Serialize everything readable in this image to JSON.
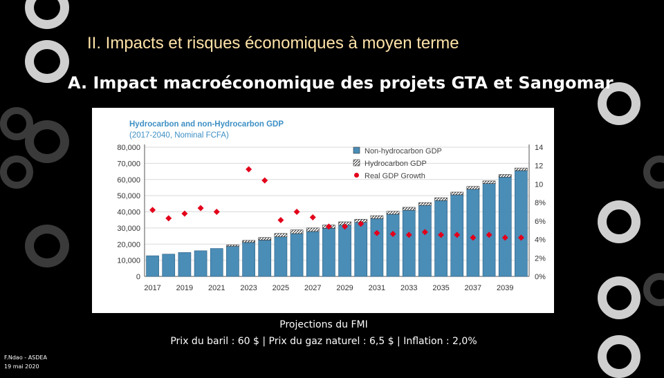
{
  "slide": {
    "title": "II. Impacts et risques  économiques à moyen terme",
    "subtitle": "A.  Impact macroéconomique des projets GTA et Sangomar",
    "caption_line1": "Projections du FMI",
    "caption_line2": "Prix du baril : 60 $ | Prix du gaz naturel : 6,5 $ | Inflation : 2,0%",
    "footer_author": "F.Ndao - ASDEA",
    "footer_date": "19 mai 2020"
  },
  "colors": {
    "background": "#000000",
    "title": "#ffe3a8",
    "bar_non_hydrocarbon": "#4a8db7",
    "bar_hydrocarbon": "#ffffff",
    "growth_marker": "#e3001b",
    "chart_title": "#3d8fc4"
  },
  "chart_data": {
    "type": "bar",
    "title": "Hydrocarbon and non-Hydrocarbon GDP",
    "subtitle": "(2017-2040, Nominal FCFA)",
    "categories": [
      "2017",
      "2018",
      "2019",
      "2020",
      "2021",
      "2022",
      "2023",
      "2024",
      "2025",
      "2026",
      "2027",
      "2028",
      "2029",
      "2030",
      "2031",
      "2032",
      "2033",
      "2034",
      "2035",
      "2036",
      "2037",
      "2038",
      "2039",
      "2040"
    ],
    "x_tick_labels": [
      "2017",
      "2019",
      "2021",
      "2023",
      "2025",
      "2027",
      "2029",
      "2031",
      "2033",
      "2035",
      "2037",
      "2039"
    ],
    "series": [
      {
        "name": "Non-hydrocarbon GDP",
        "kind": "bar",
        "axis": "left",
        "values": [
          12800,
          13800,
          14800,
          15900,
          17300,
          18600,
          21000,
          22500,
          24500,
          26500,
          27800,
          29800,
          31800,
          33500,
          35800,
          38500,
          41000,
          44000,
          47000,
          50500,
          54000,
          57500,
          61500,
          65500
        ]
      },
      {
        "name": "Hydrocarbon GDP",
        "kind": "bar",
        "axis": "left",
        "values": [
          0,
          0,
          0,
          0,
          0,
          900,
          1300,
          1600,
          2100,
          2300,
          2200,
          2000,
          2000,
          1900,
          1800,
          1800,
          1800,
          1700,
          1700,
          1700,
          1700,
          1600,
          1600,
          1600
        ]
      },
      {
        "name": "Real GDP Growth",
        "kind": "scatter",
        "axis": "right",
        "unit": "%",
        "values": [
          7.2,
          6.3,
          6.8,
          7.4,
          7.0,
          null,
          11.6,
          10.4,
          6.1,
          7.0,
          6.4,
          5.4,
          5.4,
          5.7,
          4.7,
          4.6,
          4.5,
          4.8,
          4.5,
          4.5,
          4.2,
          4.5,
          4.2,
          4.2
        ]
      }
    ],
    "y_left": {
      "min": 0,
      "max": 80000,
      "ticks": [
        "0",
        "10,000",
        "20,000",
        "30,000",
        "40,000",
        "50,000",
        "60,000",
        "70,000",
        "80,000"
      ]
    },
    "y_right": {
      "min": 0,
      "max": 14,
      "ticks": [
        "0%",
        "2%",
        "4%",
        "6%",
        "8%",
        "10",
        "12",
        "14"
      ]
    },
    "legend_position": "top-right"
  }
}
